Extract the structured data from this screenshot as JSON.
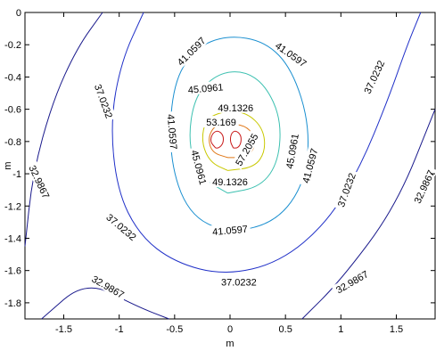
{
  "chart_data": {
    "type": "contour",
    "xlabel": "m",
    "ylabel": "m",
    "xlim": [
      -1.85,
      1.85
    ],
    "ylim": [
      -1.9,
      0
    ],
    "xticks": [
      -1.5,
      -1,
      -0.5,
      0,
      0.5,
      1,
      1.5
    ],
    "xtick_labels": [
      "-1.5",
      "-1",
      "-0.5",
      "0",
      "0.5",
      "1",
      "1.5"
    ],
    "yticks": [
      0,
      -0.2,
      -0.4,
      -0.6,
      -0.8,
      -1,
      -1.2,
      -1.4,
      -1.6,
      -1.8
    ],
    "ytick_labels": [
      "0",
      "-0.2",
      "-0.4",
      "-0.6",
      "-0.8",
      "-1",
      "-1.2",
      "-1.4",
      "-1.6",
      "-1.8"
    ],
    "levels": [
      {
        "value": "32.9867",
        "color": "#1a1a8c"
      },
      {
        "value": "37.0232",
        "color": "#2030c8"
      },
      {
        "value": "41.0597",
        "color": "#1a8fd0"
      },
      {
        "value": "45.0961",
        "color": "#3cc0b0"
      },
      {
        "value": "49.1326",
        "color": "#c8c800"
      },
      {
        "value": "53.169",
        "color": "#e07818"
      },
      {
        "value": "57.2055",
        "color": "#c81818"
      }
    ],
    "contours": [
      {
        "level": 0,
        "points": [
          [
            -1.85,
            -1.45
          ],
          [
            -1.78,
            -1.0
          ],
          [
            -1.6,
            -0.55
          ],
          [
            -1.38,
            -0.22
          ],
          [
            -1.15,
            0
          ]
        ]
      },
      {
        "level": 0,
        "points": [
          [
            -1.7,
            -1.9
          ],
          [
            -1.3,
            -1.66
          ],
          [
            -0.85,
            -1.82
          ],
          [
            -0.55,
            -1.9
          ]
        ]
      },
      {
        "level": 0,
        "points": [
          [
            0.65,
            -1.9
          ],
          [
            1.0,
            -1.66
          ],
          [
            1.5,
            -1.2
          ],
          [
            1.85,
            -0.6
          ]
        ]
      },
      {
        "level": 1,
        "points": [
          [
            -0.78,
            0
          ],
          [
            -0.98,
            -0.3
          ],
          [
            -1.08,
            -0.68
          ],
          [
            -1.02,
            -1.1
          ],
          [
            -0.82,
            -1.38
          ],
          [
            -0.5,
            -1.55
          ],
          [
            -0.05,
            -1.63
          ],
          [
            0.45,
            -1.55
          ],
          [
            0.88,
            -1.3
          ],
          [
            1.18,
            -0.95
          ],
          [
            1.42,
            -0.55
          ],
          [
            1.6,
            -0.2
          ],
          [
            1.72,
            0
          ]
        ]
      },
      {
        "level": 2,
        "points": [
          [
            -0.02,
            -1.37
          ],
          [
            -0.38,
            -1.25
          ],
          [
            -0.55,
            -0.9
          ],
          [
            -0.52,
            -0.45
          ],
          [
            -0.32,
            -0.22
          ],
          [
            -0.02,
            -0.14
          ],
          [
            0.32,
            -0.18
          ],
          [
            0.56,
            -0.35
          ],
          [
            0.72,
            -0.7
          ],
          [
            0.68,
            -1.05
          ],
          [
            0.42,
            -1.3
          ],
          [
            -0.02,
            -1.37
          ]
        ]
      },
      {
        "level": 3,
        "points": [
          [
            -0.02,
            -1.12
          ],
          [
            -0.28,
            -1.02
          ],
          [
            -0.38,
            -0.8
          ],
          [
            -0.32,
            -0.52
          ],
          [
            -0.12,
            -0.38
          ],
          [
            0.12,
            -0.36
          ],
          [
            0.32,
            -0.45
          ],
          [
            0.46,
            -0.66
          ],
          [
            0.44,
            -0.92
          ],
          [
            0.28,
            -1.08
          ],
          [
            -0.02,
            -1.12
          ]
        ]
      },
      {
        "level": 4,
        "points": [
          [
            -0.02,
            -0.98
          ],
          [
            -0.18,
            -0.93
          ],
          [
            -0.26,
            -0.8
          ],
          [
            -0.22,
            -0.66
          ],
          [
            -0.05,
            -0.61
          ],
          [
            0.15,
            -0.62
          ],
          [
            0.3,
            -0.72
          ],
          [
            0.32,
            -0.86
          ],
          [
            0.22,
            -0.96
          ],
          [
            -0.02,
            -0.98
          ]
        ]
      },
      {
        "level": 5,
        "points": [
          [
            -0.02,
            -0.9
          ],
          [
            -0.16,
            -0.87
          ],
          [
            -0.2,
            -0.78
          ],
          [
            -0.14,
            -0.7
          ],
          [
            -0.02,
            -0.69
          ],
          [
            0.13,
            -0.7
          ],
          [
            0.22,
            -0.76
          ],
          [
            0.22,
            -0.85
          ],
          [
            0.12,
            -0.9
          ],
          [
            -0.02,
            -0.9
          ]
        ]
      },
      {
        "level": 6,
        "points": [
          [
            -0.13,
            -0.84
          ],
          [
            -0.18,
            -0.8
          ],
          [
            -0.16,
            -0.75
          ],
          [
            -0.11,
            -0.73
          ],
          [
            -0.06,
            -0.76
          ],
          [
            -0.06,
            -0.81
          ],
          [
            -0.1,
            -0.84
          ],
          [
            -0.13,
            -0.84
          ]
        ]
      },
      {
        "level": 6,
        "points": [
          [
            0.03,
            -0.84
          ],
          [
            0.0,
            -0.8
          ],
          [
            0.01,
            -0.75
          ],
          [
            0.05,
            -0.73
          ],
          [
            0.1,
            -0.76
          ],
          [
            0.1,
            -0.81
          ],
          [
            0.07,
            -0.84
          ],
          [
            0.03,
            -0.84
          ]
        ]
      }
    ],
    "contour_labels": [
      {
        "text": "41.0597",
        "x": -0.35,
        "y": -0.24,
        "angle": -45
      },
      {
        "text": "41.0597",
        "x": 0.55,
        "y": -0.26,
        "angle": 35
      },
      {
        "text": "45.0961",
        "x": -0.22,
        "y": -0.47,
        "angle": -5
      },
      {
        "text": "49.1326",
        "x": 0.05,
        "y": -0.59,
        "angle": 0
      },
      {
        "text": "53.169",
        "x": -0.08,
        "y": -0.68,
        "angle": 0
      },
      {
        "text": "41.0597",
        "x": -0.52,
        "y": -0.74,
        "angle": 85
      },
      {
        "text": "57.2055",
        "x": 0.15,
        "y": -0.85,
        "angle": -60
      },
      {
        "text": "45.0961",
        "x": 0.56,
        "y": -0.86,
        "angle": -80
      },
      {
        "text": "45.0961",
        "x": -0.28,
        "y": -0.96,
        "angle": 75
      },
      {
        "text": "41.0597",
        "x": 0.72,
        "y": -0.95,
        "angle": -75
      },
      {
        "text": "49.1326",
        "x": 0.0,
        "y": -1.05,
        "angle": 0
      },
      {
        "text": "37.0232",
        "x": -1.14,
        "y": -0.55,
        "angle": 70
      },
      {
        "text": "37.0232",
        "x": 1.3,
        "y": -0.4,
        "angle": -65
      },
      {
        "text": "32.9867",
        "x": -1.72,
        "y": -1.05,
        "angle": 65
      },
      {
        "text": "37.0232",
        "x": -0.98,
        "y": -1.33,
        "angle": 40
      },
      {
        "text": "41.0597",
        "x": 0.0,
        "y": -1.35,
        "angle": -5
      },
      {
        "text": "37.0232",
        "x": 1.05,
        "y": -1.1,
        "angle": -70
      },
      {
        "text": "32.9867",
        "x": 1.75,
        "y": -1.08,
        "angle": -65
      },
      {
        "text": "32.9867",
        "x": -1.1,
        "y": -1.7,
        "angle": 30
      },
      {
        "text": "37.0232",
        "x": 0.08,
        "y": -1.67,
        "angle": 0
      },
      {
        "text": "32.9867",
        "x": 1.1,
        "y": -1.67,
        "angle": -30
      }
    ],
    "grid": false
  }
}
